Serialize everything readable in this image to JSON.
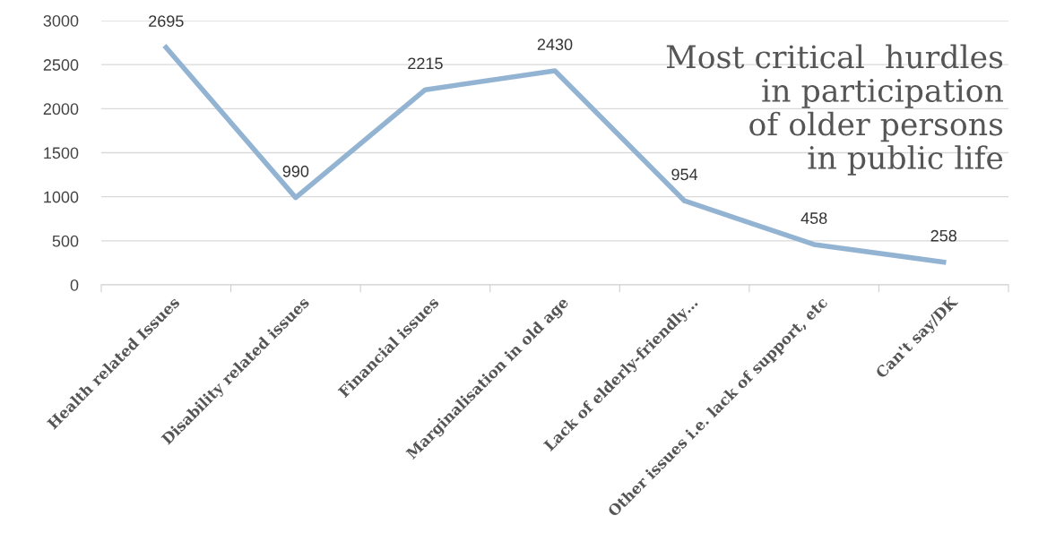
{
  "chart_data": {
    "type": "line",
    "title": "Most critical  hurdles\nin participation\nof older persons\nin public life",
    "categories": [
      "Health related Issues",
      "Disability related issues",
      "Financial issues",
      "Marginalisation in old age",
      "Lack of elderly-friendly…",
      "Other issues i.e. lack of support, etc",
      "Can't say/DK"
    ],
    "series": [
      {
        "color": "#93b3d3",
        "values": [
          2695,
          990,
          2215,
          2430,
          954,
          458,
          258
        ]
      }
    ],
    "ylim": [
      0,
      3000
    ],
    "yticks": [
      0,
      500,
      1000,
      1500,
      2000,
      2500,
      3000
    ],
    "grid": "y",
    "legend": false,
    "marker": "none",
    "line_style": "solid",
    "data_labels": true
  }
}
